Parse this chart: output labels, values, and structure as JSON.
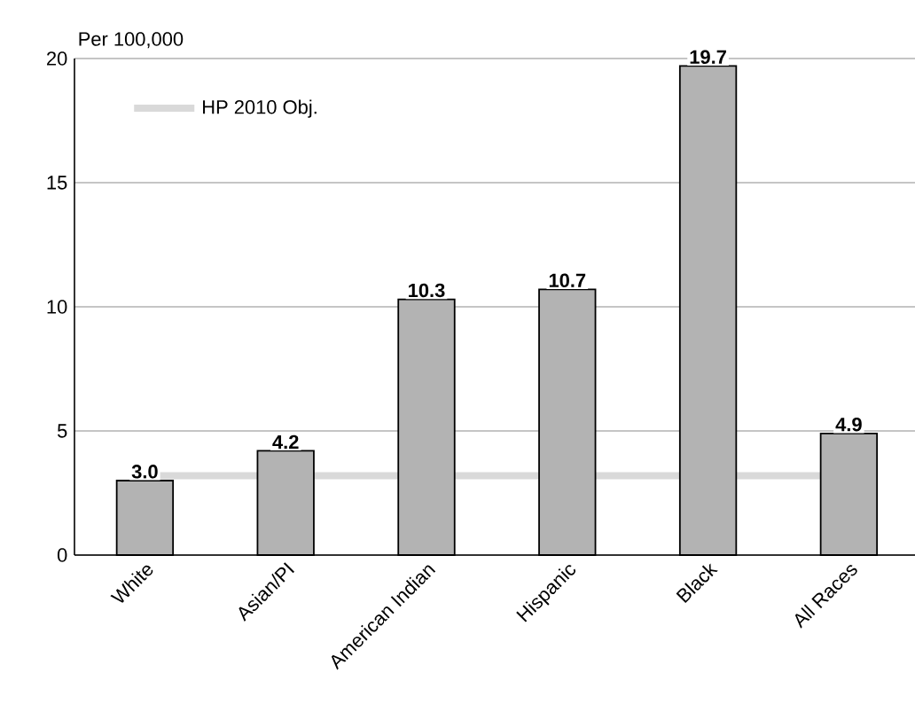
{
  "chart_data": {
    "type": "bar",
    "ylabel": "Per 100,000",
    "categories": [
      "White",
      "Asian/PI",
      "American Indian",
      "Hispanic",
      "Black",
      "All Races"
    ],
    "values": [
      3.0,
      4.2,
      10.3,
      10.7,
      19.7,
      4.9
    ],
    "color": "#b3b3b3",
    "value_labels": [
      "3.0",
      "4.2",
      "10.3",
      "10.7",
      "19.7",
      "4.9"
    ],
    "ylim": [
      0,
      20
    ],
    "yticks": [
      0,
      5,
      10,
      15,
      20
    ],
    "grid": "y",
    "legend": "top left",
    "ref_lines": [
      {
        "axis": "y",
        "value": 3.2,
        "label": "HP 2010 Obj.",
        "color": "#d9d9d9"
      }
    ]
  }
}
